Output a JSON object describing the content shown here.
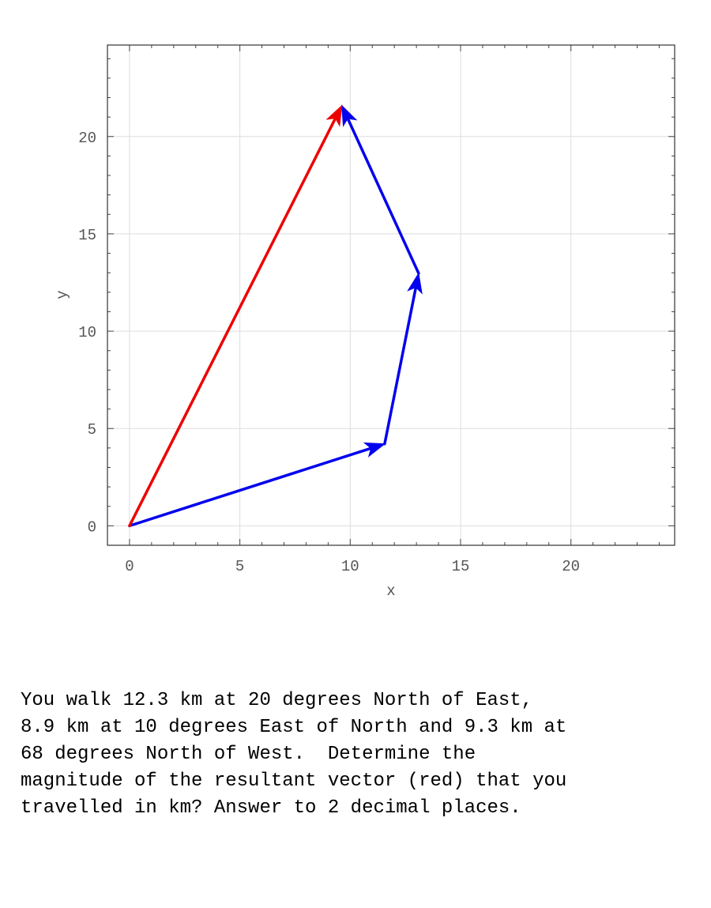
{
  "chart_data": {
    "type": "vector",
    "xlabel": "x",
    "ylabel": "y",
    "xlim": [
      -1,
      24.7
    ],
    "ylim": [
      -1,
      24.7
    ],
    "x_ticks": [
      0,
      5,
      10,
      15,
      20
    ],
    "y_ticks": [
      0,
      5,
      10,
      15,
      20
    ],
    "grid": true,
    "vectors": [
      {
        "role": "component",
        "from": [
          0,
          0
        ],
        "to": [
          11.56,
          4.21
        ],
        "color": "#0000ee"
      },
      {
        "role": "component",
        "from": [
          11.56,
          4.21
        ],
        "to": [
          13.1,
          12.97
        ],
        "color": "#0000ee"
      },
      {
        "role": "component",
        "from": [
          13.1,
          12.97
        ],
        "to": [
          9.62,
          21.59
        ],
        "color": "#0000ee"
      },
      {
        "role": "resultant",
        "from": [
          0,
          0
        ],
        "to": [
          9.62,
          21.59
        ],
        "color": "#ee0000"
      }
    ]
  },
  "question": {
    "lines": [
      "You walk 12.3 km at 20 degrees North of East,",
      "8.9 km at 10 degrees East of North and 9.3 km at",
      "68 degrees North of West.  Determine the",
      "magnitude of the resultant vector (red) that you",
      "travelled in km? Answer to 2 decimal places."
    ]
  }
}
